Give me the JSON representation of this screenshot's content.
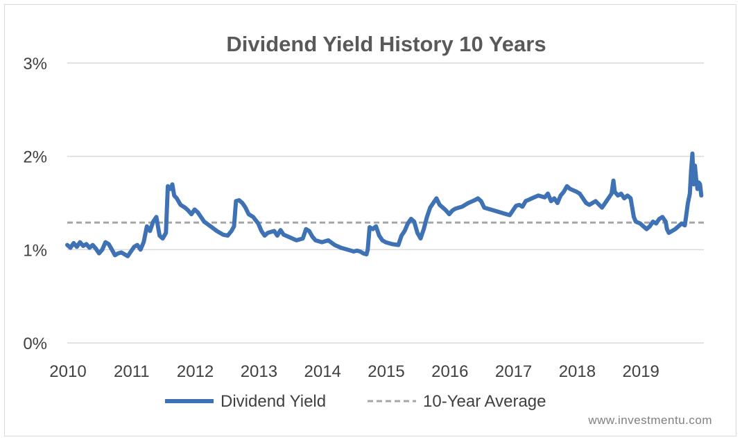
{
  "watermark": "www.investmentu.com",
  "chart_data": {
    "type": "line",
    "title": "Dividend Yield History 10 Years",
    "xlabel": "",
    "ylabel": "",
    "x_ticks": [
      "2010",
      "2011",
      "2012",
      "2013",
      "2014",
      "2015",
      "2016",
      "2017",
      "2018",
      "2019"
    ],
    "xlim": [
      2010.0,
      2020.0
    ],
    "y_ticks": [
      "0%",
      "1%",
      "2%",
      "3%"
    ],
    "ylim": [
      0,
      3
    ],
    "y_unit": "%",
    "grid": "horizontal",
    "legend_position": "bottom",
    "colors": {
      "dividend_yield": "#3f72b4",
      "average": "#a6a6a6",
      "grid": "#d9d9d9"
    },
    "series": [
      {
        "name": "Dividend Yield",
        "style": "solid",
        "points": [
          [
            2010.0,
            1.05
          ],
          [
            2010.05,
            1.02
          ],
          [
            2010.1,
            1.07
          ],
          [
            2010.15,
            1.03
          ],
          [
            2010.2,
            1.08
          ],
          [
            2010.25,
            1.04
          ],
          [
            2010.3,
            1.06
          ],
          [
            2010.35,
            1.02
          ],
          [
            2010.4,
            1.05
          ],
          [
            2010.45,
            1.01
          ],
          [
            2010.5,
            0.96
          ],
          [
            2010.55,
            1.0
          ],
          [
            2010.6,
            1.08
          ],
          [
            2010.65,
            1.06
          ],
          [
            2010.7,
            1.0
          ],
          [
            2010.75,
            0.94
          ],
          [
            2010.8,
            0.96
          ],
          [
            2010.85,
            0.97
          ],
          [
            2010.9,
            0.95
          ],
          [
            2010.95,
            0.93
          ],
          [
            2011.0,
            0.98
          ],
          [
            2011.05,
            1.03
          ],
          [
            2011.1,
            1.05
          ],
          [
            2011.15,
            1.0
          ],
          [
            2011.2,
            1.08
          ],
          [
            2011.25,
            1.25
          ],
          [
            2011.3,
            1.2
          ],
          [
            2011.35,
            1.3
          ],
          [
            2011.4,
            1.35
          ],
          [
            2011.45,
            1.15
          ],
          [
            2011.5,
            1.12
          ],
          [
            2011.55,
            1.18
          ],
          [
            2011.58,
            1.68
          ],
          [
            2011.62,
            1.65
          ],
          [
            2011.65,
            1.7
          ],
          [
            2011.68,
            1.58
          ],
          [
            2011.72,
            1.55
          ],
          [
            2011.78,
            1.48
          ],
          [
            2011.85,
            1.45
          ],
          [
            2011.9,
            1.42
          ],
          [
            2011.95,
            1.38
          ],
          [
            2012.0,
            1.43
          ],
          [
            2012.05,
            1.4
          ],
          [
            2012.1,
            1.35
          ],
          [
            2012.15,
            1.3
          ],
          [
            2012.25,
            1.25
          ],
          [
            2012.35,
            1.2
          ],
          [
            2012.45,
            1.16
          ],
          [
            2012.52,
            1.15
          ],
          [
            2012.58,
            1.2
          ],
          [
            2012.62,
            1.25
          ],
          [
            2012.65,
            1.52
          ],
          [
            2012.7,
            1.53
          ],
          [
            2012.75,
            1.5
          ],
          [
            2012.8,
            1.45
          ],
          [
            2012.85,
            1.38
          ],
          [
            2012.92,
            1.35
          ],
          [
            2013.0,
            1.28
          ],
          [
            2013.05,
            1.2
          ],
          [
            2013.1,
            1.15
          ],
          [
            2013.15,
            1.18
          ],
          [
            2013.25,
            1.2
          ],
          [
            2013.3,
            1.15
          ],
          [
            2013.35,
            1.21
          ],
          [
            2013.4,
            1.16
          ],
          [
            2013.5,
            1.13
          ],
          [
            2013.6,
            1.1
          ],
          [
            2013.7,
            1.12
          ],
          [
            2013.75,
            1.22
          ],
          [
            2013.8,
            1.2
          ],
          [
            2013.85,
            1.14
          ],
          [
            2013.9,
            1.1
          ],
          [
            2014.0,
            1.08
          ],
          [
            2014.1,
            1.1
          ],
          [
            2014.2,
            1.05
          ],
          [
            2014.3,
            1.02
          ],
          [
            2014.4,
            1.0
          ],
          [
            2014.5,
            0.98
          ],
          [
            2014.55,
            0.99
          ],
          [
            2014.6,
            0.98
          ],
          [
            2014.65,
            0.96
          ],
          [
            2014.7,
            0.95
          ],
          [
            2014.72,
            1.0
          ],
          [
            2014.75,
            1.24
          ],
          [
            2014.8,
            1.22
          ],
          [
            2014.85,
            1.25
          ],
          [
            2014.9,
            1.15
          ],
          [
            2014.95,
            1.1
          ],
          [
            2015.0,
            1.08
          ],
          [
            2015.1,
            1.06
          ],
          [
            2015.2,
            1.05
          ],
          [
            2015.25,
            1.15
          ],
          [
            2015.3,
            1.2
          ],
          [
            2015.35,
            1.28
          ],
          [
            2015.4,
            1.33
          ],
          [
            2015.45,
            1.3
          ],
          [
            2015.5,
            1.18
          ],
          [
            2015.55,
            1.12
          ],
          [
            2015.6,
            1.22
          ],
          [
            2015.65,
            1.35
          ],
          [
            2015.7,
            1.45
          ],
          [
            2015.75,
            1.5
          ],
          [
            2015.8,
            1.55
          ],
          [
            2015.85,
            1.48
          ],
          [
            2015.9,
            1.45
          ],
          [
            2015.95,
            1.42
          ],
          [
            2016.0,
            1.38
          ],
          [
            2016.05,
            1.42
          ],
          [
            2016.1,
            1.44
          ],
          [
            2016.2,
            1.46
          ],
          [
            2016.3,
            1.5
          ],
          [
            2016.4,
            1.53
          ],
          [
            2016.45,
            1.55
          ],
          [
            2016.5,
            1.52
          ],
          [
            2016.55,
            1.45
          ],
          [
            2016.6,
            1.44
          ],
          [
            2016.7,
            1.42
          ],
          [
            2016.8,
            1.4
          ],
          [
            2016.9,
            1.38
          ],
          [
            2016.95,
            1.37
          ],
          [
            2017.0,
            1.42
          ],
          [
            2017.05,
            1.47
          ],
          [
            2017.1,
            1.48
          ],
          [
            2017.15,
            1.46
          ],
          [
            2017.2,
            1.52
          ],
          [
            2017.3,
            1.55
          ],
          [
            2017.4,
            1.58
          ],
          [
            2017.5,
            1.56
          ],
          [
            2017.55,
            1.6
          ],
          [
            2017.6,
            1.52
          ],
          [
            2017.65,
            1.55
          ],
          [
            2017.7,
            1.5
          ],
          [
            2017.75,
            1.58
          ],
          [
            2017.8,
            1.62
          ],
          [
            2017.85,
            1.68
          ],
          [
            2017.9,
            1.65
          ],
          [
            2018.0,
            1.62
          ],
          [
            2018.05,
            1.6
          ],
          [
            2018.1,
            1.55
          ],
          [
            2018.15,
            1.5
          ],
          [
            2018.2,
            1.48
          ],
          [
            2018.3,
            1.52
          ],
          [
            2018.4,
            1.45
          ],
          [
            2018.45,
            1.5
          ],
          [
            2018.5,
            1.55
          ],
          [
            2018.55,
            1.6
          ],
          [
            2018.58,
            1.74
          ],
          [
            2018.6,
            1.62
          ],
          [
            2018.65,
            1.58
          ],
          [
            2018.7,
            1.6
          ],
          [
            2018.75,
            1.55
          ],
          [
            2018.8,
            1.58
          ],
          [
            2018.85,
            1.55
          ],
          [
            2018.9,
            1.35
          ],
          [
            2018.93,
            1.3
          ],
          [
            2019.0,
            1.28
          ],
          [
            2019.05,
            1.25
          ],
          [
            2019.1,
            1.22
          ],
          [
            2019.15,
            1.25
          ],
          [
            2019.2,
            1.3
          ],
          [
            2019.25,
            1.28
          ],
          [
            2019.3,
            1.33
          ],
          [
            2019.35,
            1.35
          ],
          [
            2019.4,
            1.3
          ],
          [
            2019.42,
            1.22
          ],
          [
            2019.45,
            1.18
          ],
          [
            2019.5,
            1.2
          ],
          [
            2019.55,
            1.22
          ],
          [
            2019.6,
            1.25
          ],
          [
            2019.65,
            1.28
          ],
          [
            2019.7,
            1.26
          ],
          [
            2019.72,
            1.35
          ],
          [
            2019.75,
            1.5
          ],
          [
            2019.78,
            1.6
          ],
          [
            2019.8,
            1.85
          ],
          [
            2019.82,
            2.03
          ],
          [
            2019.84,
            1.7
          ],
          [
            2019.86,
            1.9
          ],
          [
            2019.88,
            1.75
          ],
          [
            2019.9,
            1.65
          ],
          [
            2019.92,
            1.72
          ],
          [
            2019.94,
            1.7
          ],
          [
            2019.96,
            1.58
          ]
        ]
      },
      {
        "name": "10-Year Average",
        "style": "dashed",
        "points": [
          [
            2010.0,
            1.29
          ],
          [
            2020.0,
            1.29
          ]
        ]
      }
    ]
  }
}
